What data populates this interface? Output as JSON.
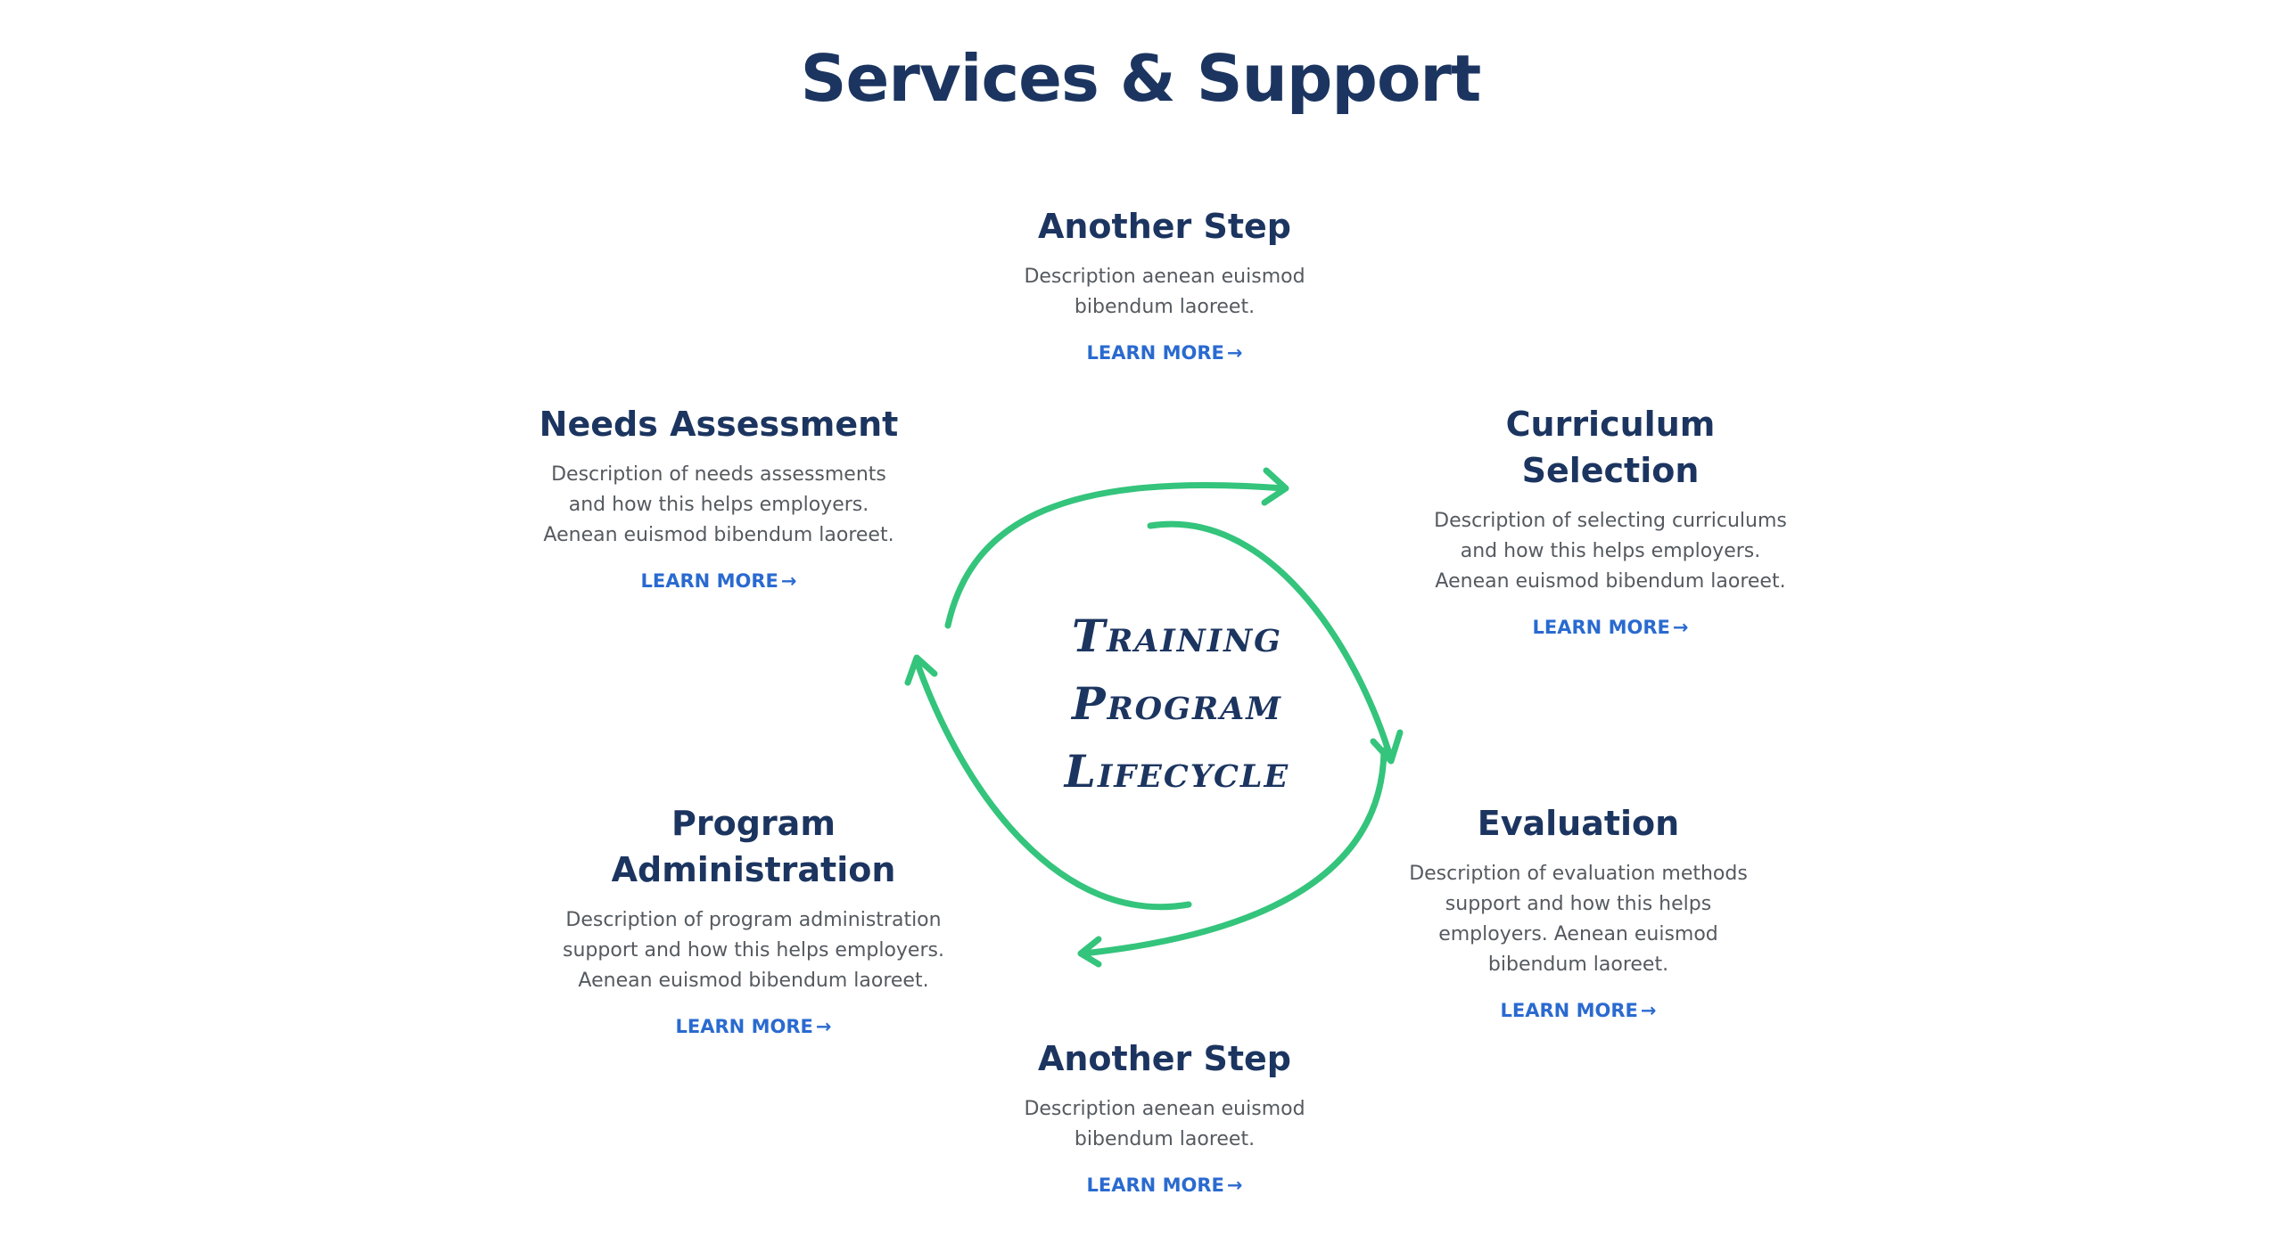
{
  "page": {
    "title": "Services & Support",
    "center_label": [
      "Training",
      "Program",
      "Lifecycle"
    ]
  },
  "colors": {
    "heading": "#1c3560",
    "body_text": "#555a60",
    "link": "#2a6ad0",
    "cycle_arrows": "#34c47c"
  },
  "steps": {
    "top": {
      "title": "Another Step",
      "description": "Description aenean euismod bibendum laoreet.",
      "link": "LEARN MORE",
      "arrow": "→"
    },
    "needs": {
      "title": "Needs Assessment",
      "description": "Description of needs assessments and how this helps employers. Aenean euismod bibendum laoreet.",
      "link": "LEARN MORE",
      "arrow": "→"
    },
    "curriculum": {
      "title": "Curriculum Selection",
      "description": "Description of selecting curriculums and how this helps employers. Aenean euismod bibendum laoreet.",
      "link": "LEARN MORE",
      "arrow": "→"
    },
    "program": {
      "title": "Program Administration",
      "description": "Description of program administration support and how this helps employers. Aenean euismod bibendum laoreet.",
      "link": "LEARN MORE",
      "arrow": "→"
    },
    "evaluation": {
      "title": "Evaluation",
      "description": "Description of evaluation methods support and how this helps employers. Aenean euismod bibendum laoreet.",
      "link": "LEARN MORE",
      "arrow": "→"
    },
    "bottom": {
      "title": "Another Step",
      "description": "Description aenean euismod bibendum laoreet.",
      "link": "LEARN MORE",
      "arrow": "→"
    }
  }
}
